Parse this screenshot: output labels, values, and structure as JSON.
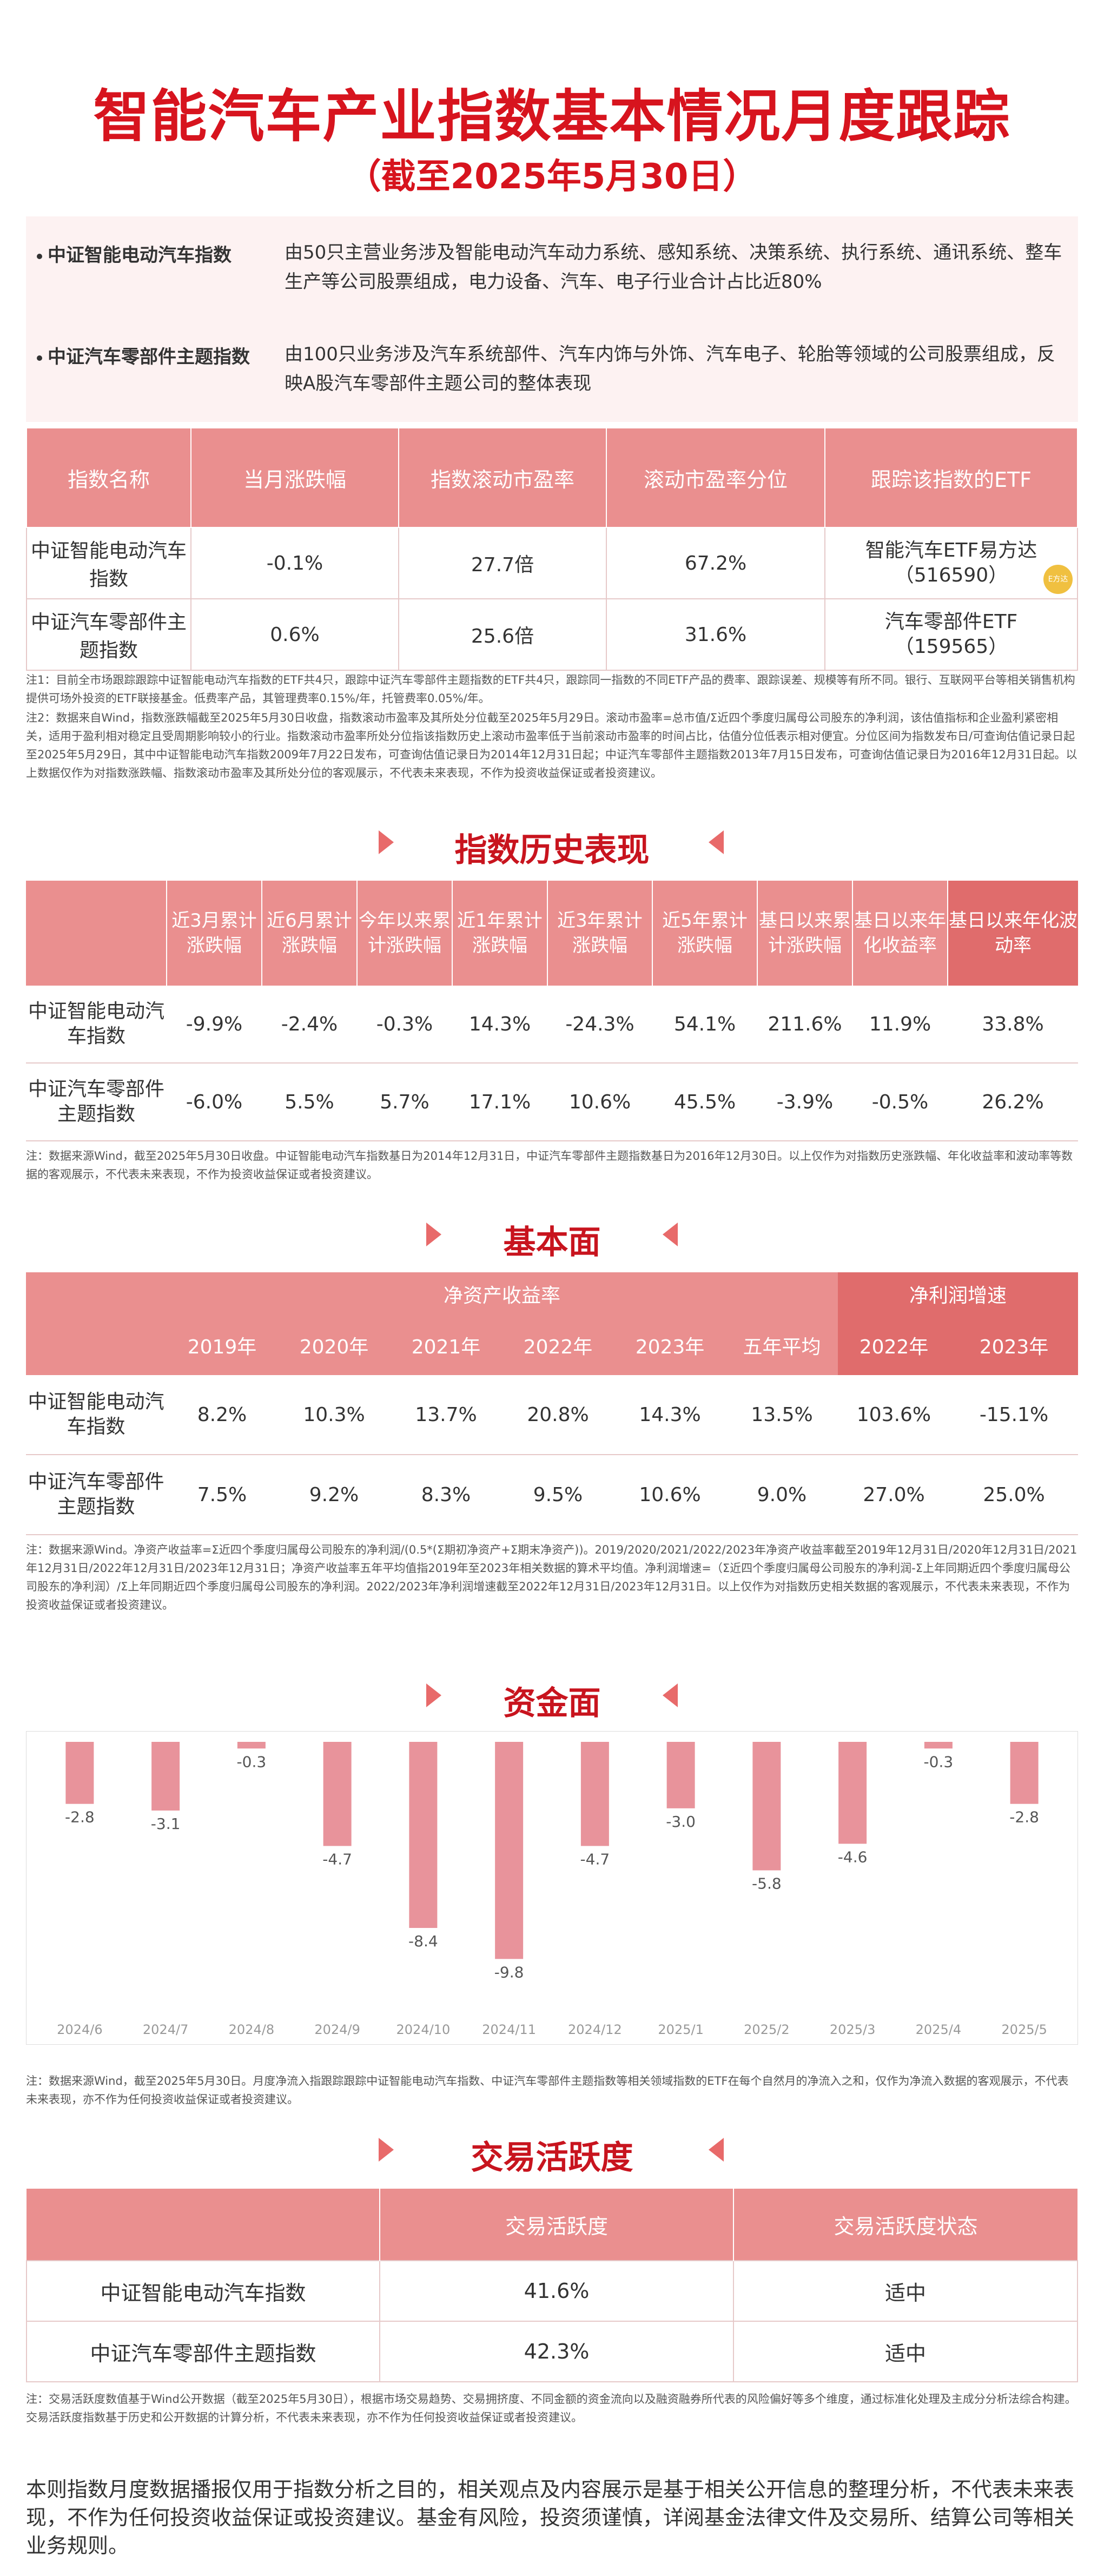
{
  "header": {
    "title": "智能汽车产业指数基本情况月度跟踪",
    "subtitle": "（截至2025年5月30日）"
  },
  "intro": [
    {
      "name": "中证智能电动汽车指数",
      "desc": "由50只主营业务涉及智能电动汽车动力系统、感知系统、决策系统、执行系统、通讯系统、整车生产等公司股票组成，电力设备、汽车、电子行业合计占比近80%"
    },
    {
      "name": "中证汽车零部件主题指数",
      "desc": "由100只业务涉及汽车系统部件、汽车内饰与外饰、汽车电子、轮胎等领域的公司股票组成，反映A股汽车零部件主题公司的整体表现"
    }
  ],
  "overview": {
    "headers": [
      "指数名称",
      "当月涨跌幅",
      "指数滚动市盈率",
      "滚动市盈率分位",
      "跟踪该指数的ETF"
    ],
    "rows": [
      {
        "name": "中证智能电动汽车指数",
        "change": "-0.1%",
        "pe": "27.7倍",
        "pct": "67.2%",
        "etf_name": "智能汽车ETF易方达",
        "etf_code": "（516590）"
      },
      {
        "name": "中证汽车零部件主题指数",
        "change": "0.6%",
        "pe": "25.6倍",
        "pct": "31.6%",
        "etf_name": "汽车零部件ETF",
        "etf_code": "（159565）"
      }
    ],
    "badge": "E方达",
    "note1": "注1：目前全市场跟踪跟踪中证智能电动汽车指数的ETF共4只，跟踪中证汽车零部件主题指数的ETF共4只，跟踪同一指数的不同ETF产品的费率、跟踪误差、规模等有所不同。银行、互联网平台等相关销售机构提供可场外投资的ETF联接基金。低费率产品，其管理费率0.15%/年，托管费率0.05%/年。",
    "note2": "注2：数据来自Wind，指数涨跌幅截至2025年5月30日收盘，指数滚动市盈率及其所处分位截至2025年5月29日。滚动市盈率=总市值/Σ近四个季度归属母公司股东的净利润，该估值指标和企业盈利紧密相关，适用于盈利相对稳定且受周期影响较小的行业。指数滚动市盈率所处分位指该指数历史上滚动市盈率低于当前滚动市盈率的时间占比，估值分位低表示相对便宜。分位区间为指数发布日/可查询估值记录日起至2025年5月29日，其中中证智能电动汽车指数2009年7月22日发布，可查询估值记录日为2014年12月31日起；中证汽车零部件主题指数2013年7月15日发布，可查询估值记录日为2016年12月31日起。以上数据仅作为对指数涨跌幅、指数滚动市盈率及其所处分位的客观展示，不代表未来表现，不作为投资收益保证或者投资建议。"
  },
  "history": {
    "title": "指数历史表现",
    "headers": [
      "近3月累计涨跌幅",
      "近6月累计涨跌幅",
      "今年以来累计涨跌幅",
      "近1年累计涨跌幅",
      "近3年累计涨跌幅",
      "近5年累计涨跌幅",
      "基日以来累计涨跌幅",
      "基日以来年化收益率",
      "基日以来年化波动率"
    ],
    "rows": [
      {
        "name": "中证智能电动汽车指数",
        "values": [
          "-9.9%",
          "-2.4%",
          "-0.3%",
          "14.3%",
          "-24.3%",
          "54.1%",
          "211.6%",
          "11.9%",
          "33.8%"
        ]
      },
      {
        "name": "中证汽车零部件主题指数",
        "values": [
          "-6.0%",
          "5.5%",
          "5.7%",
          "17.1%",
          "10.6%",
          "45.5%",
          "-3.9%",
          "-0.5%",
          "26.2%"
        ]
      }
    ],
    "note": "注：数据来源Wind，截至2025年5月30日收盘。中证智能电动汽车指数基日为2014年12月31日，中证汽车零部件主题指数基日为2016年12月30日。以上仅作为对指数历史涨跌幅、年化收益率和波动率等数据的客观展示，不代表未来表现，不作为投资收益保证或者投资建议。"
  },
  "fundamentals": {
    "title": "基本面",
    "group1": "净资产收益率",
    "group2": "净利润增速",
    "years": [
      "2019年",
      "2020年",
      "2021年",
      "2022年",
      "2023年",
      "五年平均",
      "2022年",
      "2023年"
    ],
    "rows": [
      {
        "name": "中证智能电动汽车指数",
        "values": [
          "8.2%",
          "10.3%",
          "13.7%",
          "20.8%",
          "14.3%",
          "13.5%",
          "103.6%",
          "-15.1%"
        ]
      },
      {
        "name": "中证汽车零部件主题指数",
        "values": [
          "7.5%",
          "9.2%",
          "8.3%",
          "9.5%",
          "10.6%",
          "9.0%",
          "27.0%",
          "25.0%"
        ]
      }
    ],
    "note": "注：数据来源Wind。净资产收益率=Σ近四个季度归属母公司股东的净利润/(0.5*(Σ期初净资产+Σ期末净资产))。2019/2020/2021/2022/2023年净资产收益率截至2019年12月31日/2020年12月31日/2021年12月31日/2022年12月31日/2023年12月31日；净资产收益率五年平均值指2019年至2023年相关数据的算术平均值。净利润增速=（Σ近四个季度归属母公司股东的净利润-Σ上年同期近四个季度归属母公司股东的净利润）/Σ上年同期近四个季度归属母公司股东的净利润。2022/2023年净利润增速截至2022年12月31日/2023年12月31日。以上仅作为对指数历史相关数据的客观展示，不代表未来表现，不作为投资收益保证或者投资建议。"
  },
  "funds": {
    "title": "资金面",
    "note": "注：数据来源Wind，截至2025年5月30日。月度净流入指跟踪跟踪中证智能电动汽车指数、中证汽车零部件主题指数等相关领域指数的ETF在每个自然月的净流入之和，仅作为净流入数据的客观展示，不代表未来表现，亦不作为任何投资收益保证或者投资建议。"
  },
  "chart_data": {
    "type": "bar",
    "categories": [
      "2024/6",
      "2024/7",
      "2024/8",
      "2024/9",
      "2024/10",
      "2024/11",
      "2024/12",
      "2025/1",
      "2025/2",
      "2025/3",
      "2025/4",
      "2025/5"
    ],
    "values": [
      -2.8,
      -3.1,
      -0.3,
      -4.7,
      -8.4,
      -9.8,
      -4.7,
      -3.0,
      -5.8,
      -4.6,
      -0.3,
      -2.8
    ],
    "value_labels": [
      "-2.8",
      "-3.1",
      "-0.3",
      "-4.7",
      "-8.4",
      "-9.8",
      "-4.7",
      "-3.0",
      "-5.8",
      "-4.6",
      "-0.3",
      "-2.8"
    ],
    "bar_color": "#e8939b",
    "ylim": [
      -10.5,
      0
    ],
    "grid": false
  },
  "activity": {
    "title": "交易活跃度",
    "headers": [
      "",
      "交易活跃度",
      "交易活跃度状态"
    ],
    "rows": [
      {
        "name": "中证智能电动汽车指数",
        "value": "41.6%",
        "status": "适中"
      },
      {
        "name": "中证汽车零部件主题指数",
        "value": "42.3%",
        "status": "适中"
      }
    ],
    "note": "注：交易活跃度数值基于Wind公开数据（截至2025年5月30日），根据市场交易趋势、交易拥挤度、不同金额的资金流向以及融资融券所代表的风险偏好等多个维度，通过标准化处理及主成分分析法综合构建。交易活跃度指数基于历史和公开数据的计算分析，不代表未来表现，亦不作为任何投资收益保证或者投资建议。"
  },
  "disclaimer": "本则指数月度数据播报仅用于指数分析之目的，相关观点及内容展示是基于相关公开信息的整理分析，不代表未来表现，不作为任何投资收益保证或投资建议。基金有风险，投资须谨慎，详阅基金法律文件及交易所、结算公司等相关业务规则。"
}
